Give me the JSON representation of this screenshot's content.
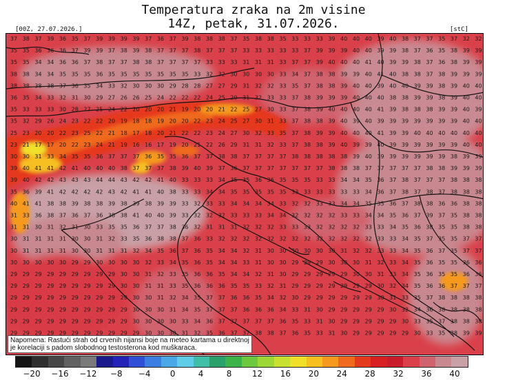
{
  "header": {
    "title_line1": "Temperatura zraka na 2m visine",
    "title_line2": "14Z, petak, 31.07.2026.",
    "run_label": "[00Z, 27.07.2026.]",
    "unit_label": "[stC]"
  },
  "note": {
    "line1": "Napomena: Rastući strah od crvenih nijansi boje na meteo kartama u direktnoj",
    "line2": "je korelaciji s padom slobodnog testosterona kod muškaraca."
  },
  "colorbar": {
    "colors": [
      "#141414",
      "#2e2e2e",
      "#474747",
      "#616161",
      "#7a7a7a",
      "#1a1a8c",
      "#2323b8",
      "#2f4fd6",
      "#3b7de0",
      "#4aa8e8",
      "#5fcde8",
      "#3fbfa8",
      "#2aa06a",
      "#3cb44a",
      "#6cc83c",
      "#9bd836",
      "#c8e030",
      "#f0e02a",
      "#f7c020",
      "#f59a1e",
      "#ef6a1e",
      "#e5391e",
      "#d82020",
      "#c81c2a",
      "#d9404a",
      "#d0646e",
      "#c88890",
      "#c8a0a6"
    ],
    "tick_labels": [
      "−20",
      "−16",
      "−12",
      "−8",
      "−4",
      "0",
      "4",
      "8",
      "12",
      "16",
      "20",
      "24",
      "28",
      "32",
      "36",
      "40"
    ]
  },
  "map": {
    "values_rows": [
      "37 38 37 39 36 35 37 39 39 39 39 37 36 37 39 38 38 38 37 35 38 38 35 33 33 33 39 40 40 40 39 40 38 37 37 35 37 32 32",
      "35 35 36 36 36 37 39 39 37 38 39 38 37 37 37 38 37 37 37 33 33 33 33 33 37 39 39 39 40 40 39 39 38 37 36 35 38 39 39",
      "35 35 34 34 36 36 37 38 37 37 38 38 37 37 37 37 33 33 33 31 31 31 33 37 37 39 40 40 40 41 40 39 39 38 37 36 38 39 39",
      "38 38 34 34 35 35 35 36 35 35 35 35 35 35 35 33 32 32 30 30 30 30 33 34 37 38 38 39 39 40 41 40 38 38 37 38 39 39 39",
      "38 38 38 38 37 36 35 34 33 32 30 30 30 29 28 28 27 27 29 31 32 32 33 35 37 38 38 39 40 40 39 40 40 39 39 38 39 40 40",
      "36 35 34 33 32 31 30 29 27 26 26 25 24 22 22 22 24 25 29 31 32 33 33 37 38 39 39 39 40 40 40 38 38 39 39 38 39 40 40",
      "35 33 33 33 30 28 27 25 24 22 20 20 20 21 19 20 20 21 22 25 27 30 33 37 38 39 40 40 40 40 41 39 38 38 38 39 39 40 39",
      "35 32 29 26 24 23 22 22 20 19 18 18 19 20 20 22 23 24 25 27 30 31 33 37 38 38 39 40 39 40 39 39 39 39 39 39 39 40 40",
      "25 23 20 20 22 23 25 22 21 18 17 18 20 21 22 22 23 24 27 30 32 33 35 37 38 39 39 40 40 40 41 39 39 40 40 40 40 40 40",
      "23 21 17 17 20 22 23 24 21 19 16 16 17 19 20 21 22 26 29 31 31 32 33 37 38 38 39 40 39 39 40 39 39 39 39 39 39 40 40",
      "30 30 31 33 34 35 35 36 37 37 37 36 35 35 36 37 37 38 38 37 37 37 37 38 38 38 38 38 39 40 39 39 39 39 39 39 38 39 39",
      "39 40 41 41 42 41 40 40 40 38 37 37 37 38 39 40 39 37 36 37 37 37 37 37 37 37 38 38 38 37 37 37 37 37 38 38 39 39 39",
      "39 40 42 42 43 43 43 44 44 43 42 42 41 40 33 33 33 34 35 35 36 36 35 35 35 33 33 34 34 35 36 37 38 37 37 37 38 38 38",
      "35 36 39 41 42 42 42 42 43 42 41 41 40 38 33 33 34 34 35 35 35 35 35 33 33 33 33 33 33 34 36 37 38 37 38 37 38 38 38",
      "40 41 41 38 38 39 38 38 39 38 39 38 39 39 33 32 33 33 34 34 34 34 33 32 32 33 33 34 34 35 35 36 37 38 38 36 36 38 38",
      "31 33 36 38 37 36 37 36 38 38 41 40 40 39 33 32 32 32 33 33 33 34 34 32 32 32 32 33 33 34 34 35 36 37 39 37 35 38 38",
      "31 31 30 31 32 31 30 33 35 35 36 37 37 38 36 32 31 31 31 32 32 32 33 33 33 32 32 32 32 33 33 34 35 36 38 35 35 38 38",
      "30 31 31 31 31 30 30 31 32 33 35 36 38 38 37 36 33 32 32 32 32 32 32 32 32 32 32 32 32 32 33 33 34 35 37 35 35 37 37",
      "30 31 31 31 31 30 30 31 31 31 32 34 35 36 37 36 35 34 34 32 31 30 30 30 30 30 30 31 32 32 33 33 34 35 36 37 35 37 37",
      "30 30 30 30 30 29 29 30 30 30 30 32 33 34 35 36 35 34 34 33 31 30 30 29 29 29 30 30 30 31 32 33 34 35 36 35 35 36 36",
      "29 29 29 29 29 29 29 29 29 30 30 31 32 33 35 36 36 35 34 34 32 31 30 29 29 29 29 29 30 30 31 33 34 35 36 35 35 36 36",
      "29 29 29 29 29 29 29 29 29 30 30 31 31 33 35 36 36 36 35 35 33 32 31 29 29 29 29 29 29 29 30 32 34 35 36 36 37 37 37",
      "29 29 29 29 29 29 29 29 29 29 30 30 31 32 34 35 37 37 36 36 35 34 32 30 29 29 29 29 29 29 30 31 33 35 37 38 38 38 38",
      "29 29 29 29 29 29 29 29 29 29 30 30 30 31 34 35 37 37 37 36 36 36 34 33 31 30 29 29 29 29 29 30 32 34 36 38 38 38 38",
      "29 29 29 29 29 29 29 29 29 29 30 30 30 30 33 34 36 37 37 37 37 37 36 35 33 31 30 29 29 29 29 29 30 33 35 37 38 38 38",
      "29 29 29 29 29 29 29 29 29 29 29 30 30 30 31 32 35 36 37 37 38 38 37 36 35 33 31 30 29 29 29 29 29 30 33 35 38 39 39"
    ]
  }
}
